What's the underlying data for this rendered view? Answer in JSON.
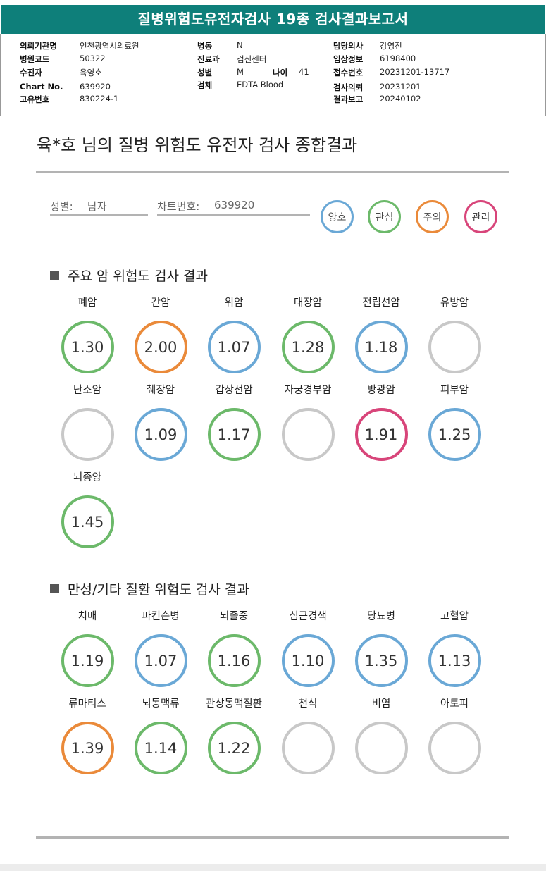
{
  "colors": {
    "header": "#0e7f7a",
    "good": "#6aa8d6",
    "interest": "#6cb96a",
    "caution": "#ea8a3a",
    "manage": "#d8457a",
    "none": "#c8c8c8"
  },
  "header": {
    "title": "질병위험도유전자검사 19종 검사결과보고서"
  },
  "info": {
    "hospital_label": "의뢰기관명",
    "hospital_value": "인천광역시의료원",
    "code_label": "병원코드",
    "code_value": "50322",
    "patient_label": "수진자",
    "patient_value": "육영호",
    "chart_label": "Chart No.",
    "chart_value": "639920",
    "id_label": "고유번호",
    "id_value": "830224-1",
    "ward_label": "병동",
    "ward_value": "N",
    "dept_label": "진료과",
    "dept_value": "검진센터",
    "sex_label": "성별",
    "sex_value": "M",
    "age_label": "나이",
    "age_value": "41",
    "specimen_label": "검체",
    "specimen_value": "EDTA Blood",
    "doctor_label": "담당의사",
    "doctor_value": "강영진",
    "clinical_label": "임상정보",
    "clinical_value": "6198400",
    "receipt_label": "접수번호",
    "receipt_value": "20231201-13717",
    "request_label": "검사의뢰",
    "request_value": "20231201",
    "report_label": "결과보고",
    "report_value": "20240102"
  },
  "summary": {
    "title": "육*호 님의 질병 위험도 유전자 검사 종합결과",
    "sex_label": "성별:",
    "sex_value": "남자",
    "chart_label": "차트번호:",
    "chart_value": "639920"
  },
  "legend": [
    {
      "label": "양호",
      "status": "good"
    },
    {
      "label": "관심",
      "status": "interest"
    },
    {
      "label": "주의",
      "status": "caution"
    },
    {
      "label": "관리",
      "status": "manage"
    }
  ],
  "cancer": {
    "title": "주요 암 위험도 검사 결과",
    "items": [
      {
        "name": "폐암",
        "value": "1.30",
        "status": "interest"
      },
      {
        "name": "간암",
        "value": "2.00",
        "status": "caution"
      },
      {
        "name": "위암",
        "value": "1.07",
        "status": "good"
      },
      {
        "name": "대장암",
        "value": "1.28",
        "status": "interest"
      },
      {
        "name": "전립선암",
        "value": "1.18",
        "status": "good"
      },
      {
        "name": "유방암",
        "value": "",
        "status": "none"
      },
      {
        "name": "난소암",
        "value": "",
        "status": "none"
      },
      {
        "name": "췌장암",
        "value": "1.09",
        "status": "good"
      },
      {
        "name": "갑상선암",
        "value": "1.17",
        "status": "interest"
      },
      {
        "name": "자궁경부암",
        "value": "",
        "status": "none"
      },
      {
        "name": "방광암",
        "value": "1.91",
        "status": "manage"
      },
      {
        "name": "피부암",
        "value": "1.25",
        "status": "good"
      },
      {
        "name": "뇌종양",
        "value": "1.45",
        "status": "interest"
      }
    ]
  },
  "chronic": {
    "title": "만성/기타 질환 위험도 검사 결과",
    "items": [
      {
        "name": "치매",
        "value": "1.19",
        "status": "interest"
      },
      {
        "name": "파킨슨병",
        "value": "1.07",
        "status": "good"
      },
      {
        "name": "뇌졸중",
        "value": "1.16",
        "status": "interest"
      },
      {
        "name": "심근경색",
        "value": "1.10",
        "status": "good"
      },
      {
        "name": "당뇨병",
        "value": "1.35",
        "status": "good"
      },
      {
        "name": "고혈압",
        "value": "1.13",
        "status": "good"
      },
      {
        "name": "류마티스",
        "value": "1.39",
        "status": "caution"
      },
      {
        "name": "뇌동맥류",
        "value": "1.14",
        "status": "interest"
      },
      {
        "name": "관상동맥질환",
        "value": "1.22",
        "status": "interest"
      },
      {
        "name": "천식",
        "value": "",
        "status": "none"
      },
      {
        "name": "비염",
        "value": "",
        "status": "none"
      },
      {
        "name": "아토피",
        "value": "",
        "status": "none"
      }
    ]
  }
}
